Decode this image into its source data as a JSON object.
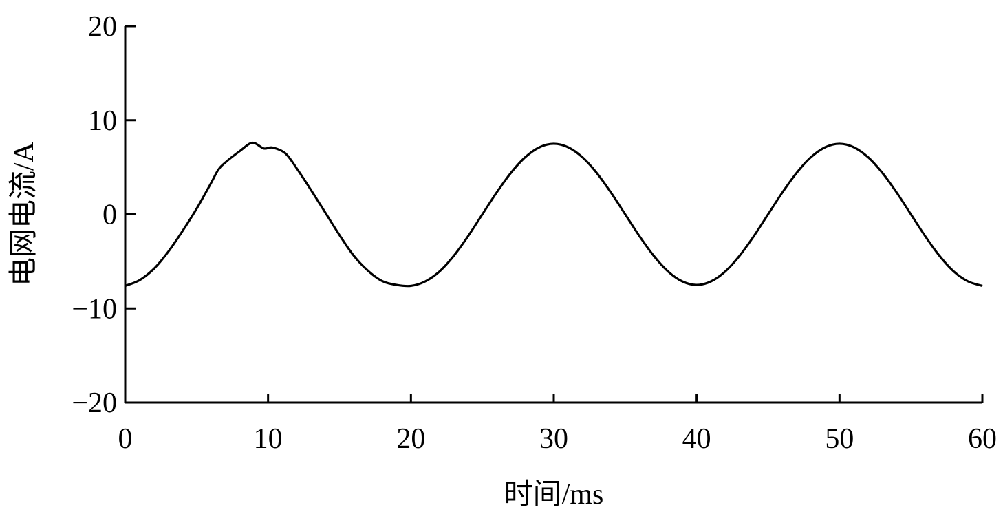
{
  "chart_data": {
    "type": "line",
    "xlabel": "时间/ms",
    "ylabel": "电网电流/A",
    "xlim": [
      0,
      60
    ],
    "ylim": [
      -20,
      20
    ],
    "xticks": [
      "0",
      "10",
      "20",
      "30",
      "40",
      "50",
      "60"
    ],
    "yticks": [
      "20",
      "10",
      "0",
      "−10",
      "−20"
    ],
    "xtick_values": [
      0,
      10,
      20,
      30,
      40,
      50,
      60
    ],
    "ytick_values": [
      20,
      10,
      0,
      -10,
      -20
    ],
    "grid": false,
    "line_color": "#000000",
    "series": [
      {
        "x": [
          0,
          1,
          2,
          3,
          4,
          5,
          6,
          6.5,
          7,
          8,
          8.9,
          9.7,
          10.3,
          11.2,
          12,
          13,
          14,
          15,
          16,
          17,
          18,
          19,
          20,
          21,
          22,
          23,
          24,
          25,
          26,
          27,
          28,
          29,
          30,
          31,
          32,
          33,
          34,
          35,
          36,
          37,
          38,
          39,
          40,
          41,
          42,
          43,
          44,
          45,
          46,
          47,
          48,
          49,
          50,
          51,
          52,
          53,
          54,
          55,
          56,
          57,
          58,
          59,
          60
        ],
        "y": [
          -7.6,
          -7.0,
          -5.8,
          -4.0,
          -1.8,
          0.6,
          3.3,
          4.7,
          5.5,
          6.7,
          7.6,
          7.0,
          7.1,
          6.5,
          4.9,
          2.6,
          0.2,
          -2.2,
          -4.4,
          -6.0,
          -7.1,
          -7.5,
          -7.6,
          -7.13,
          -6.07,
          -4.41,
          -2.32,
          0,
          2.32,
          4.41,
          6.07,
          7.13,
          7.5,
          7.13,
          6.07,
          4.41,
          2.32,
          0,
          -2.32,
          -4.41,
          -6.07,
          -7.13,
          -7.5,
          -7.13,
          -6.07,
          -4.41,
          -2.32,
          0,
          2.32,
          4.41,
          6.07,
          7.13,
          7.5,
          7.13,
          6.07,
          4.41,
          2.32,
          0,
          -2.32,
          -4.41,
          -6.07,
          -7.13,
          -7.6
        ]
      }
    ]
  }
}
